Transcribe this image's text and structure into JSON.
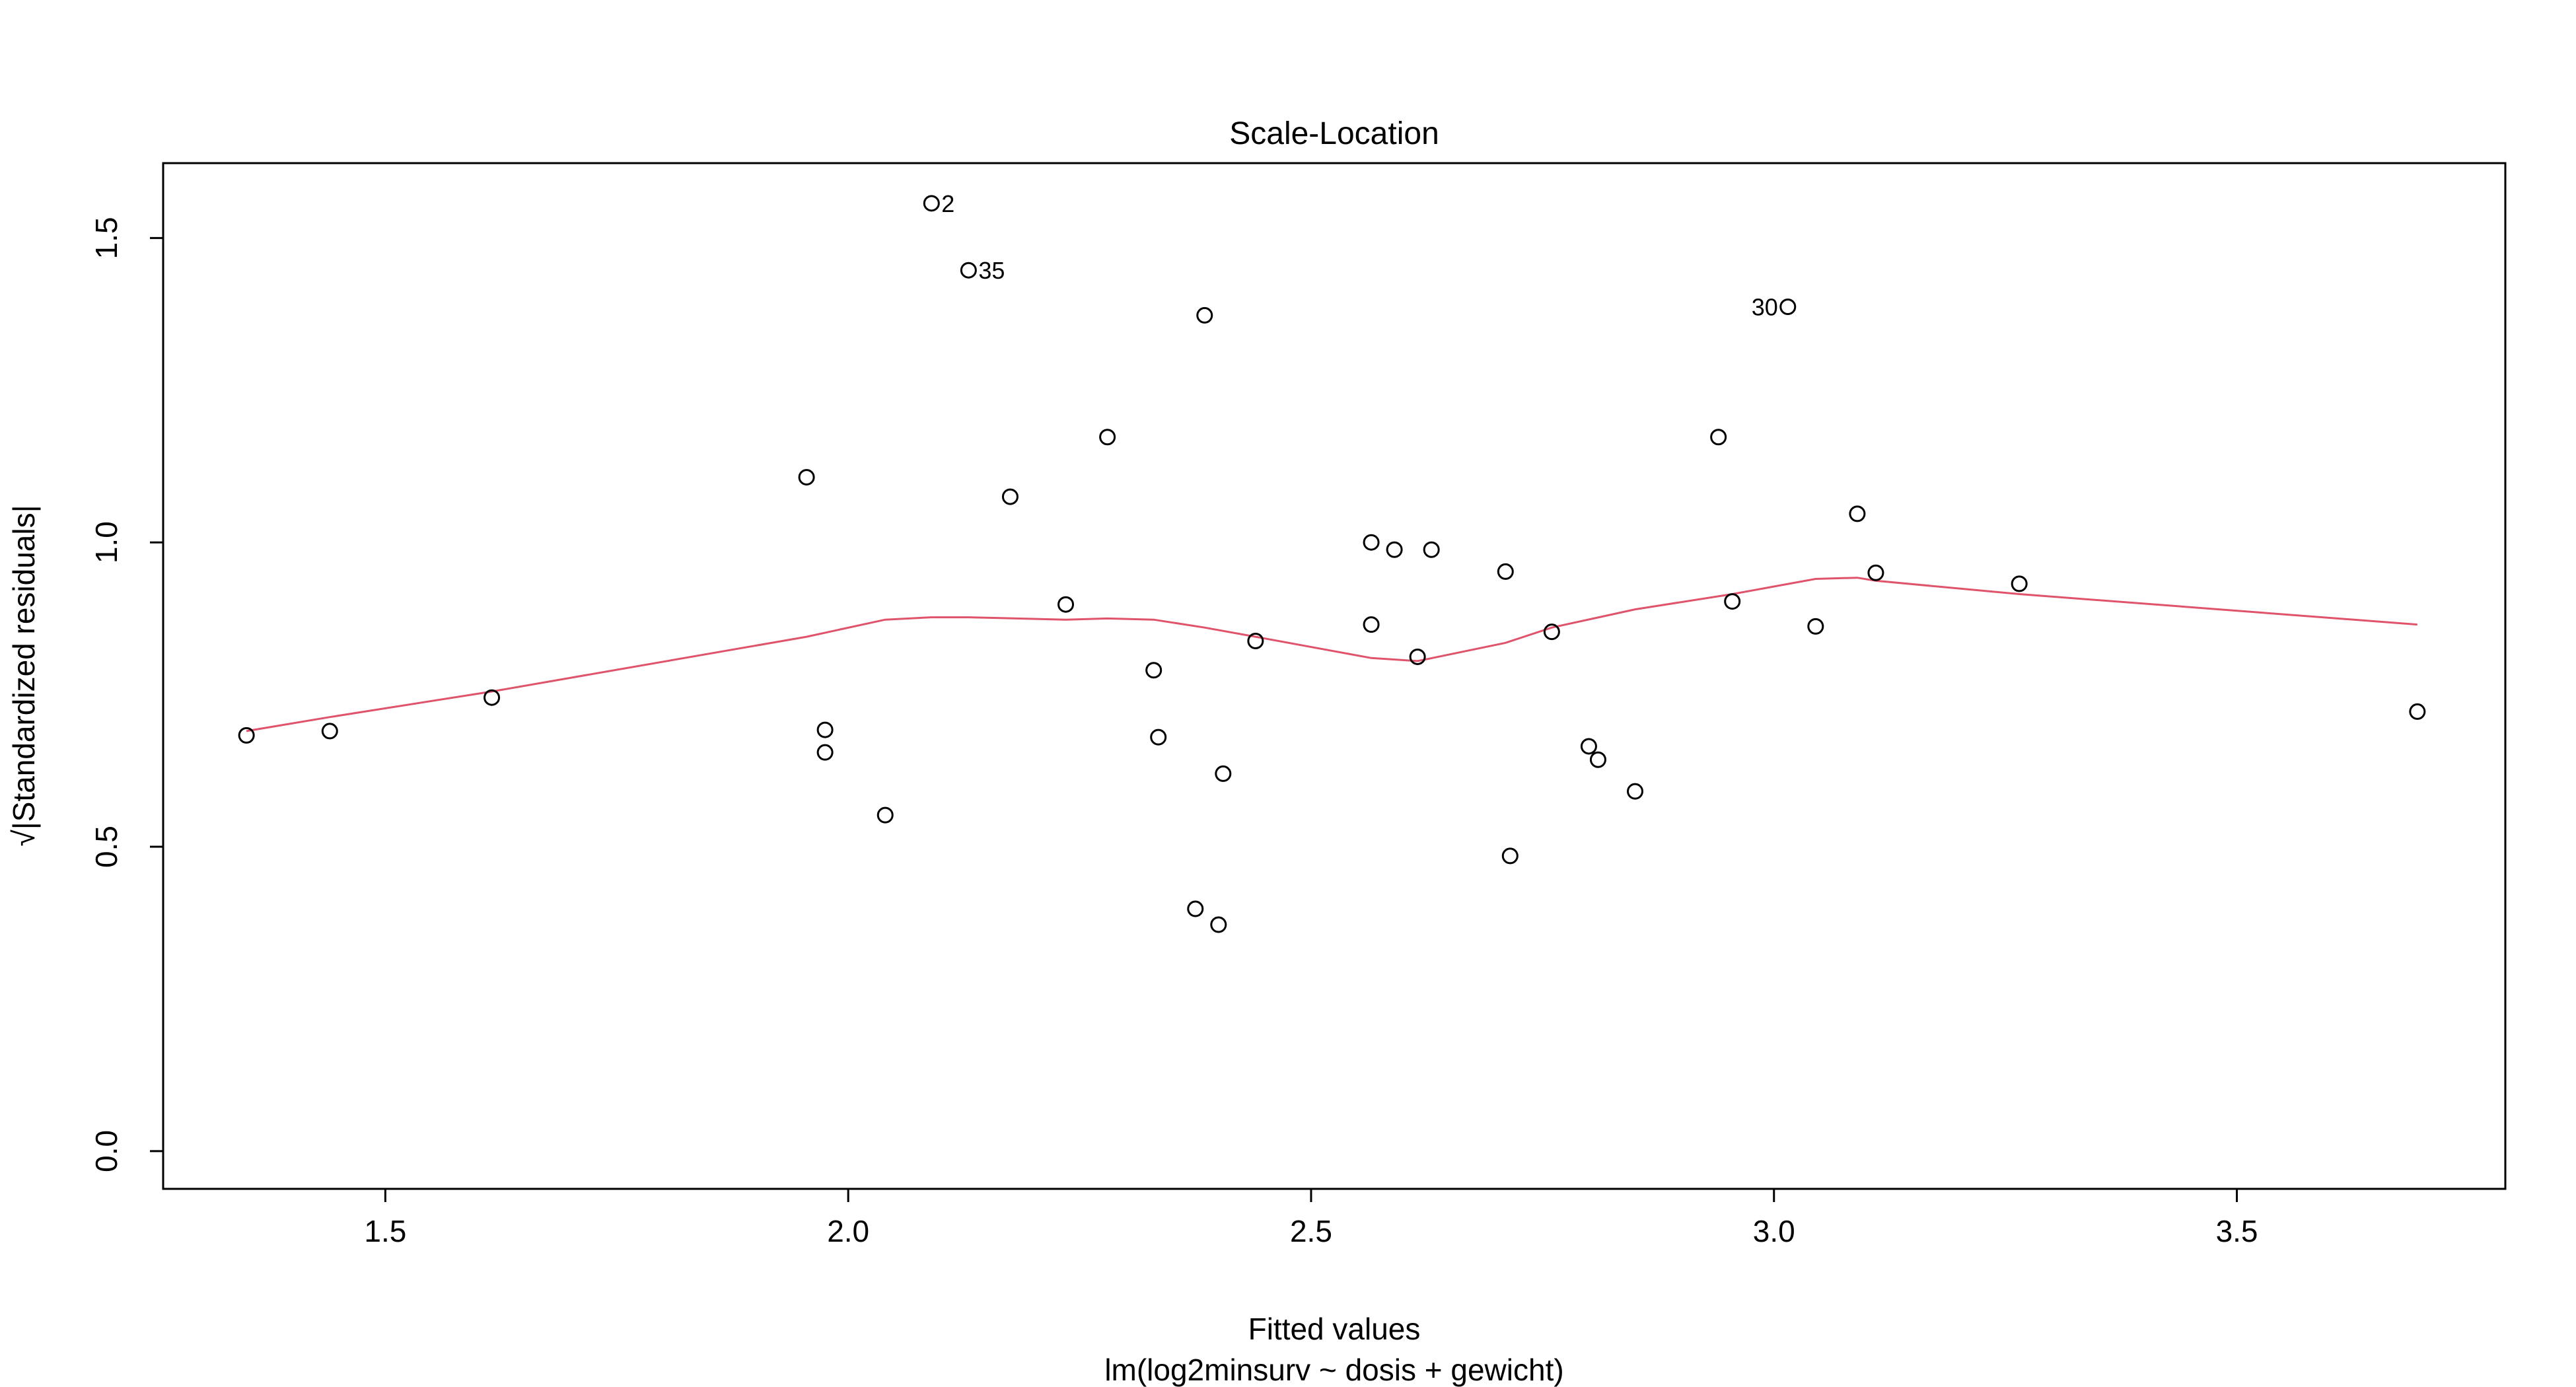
{
  "chart_data": {
    "type": "scatter",
    "title": "Scale-Location",
    "xlabel": "Fitted values",
    "subtitle": "lm(log2minsurv ~ dosis + gewicht)",
    "ylabel": "√|Standardized residuals|",
    "xlim": [
      1.26,
      3.79
    ],
    "ylim": [
      -0.062,
      1.623
    ],
    "x_ticks": [
      1.5,
      2.0,
      2.5,
      3.0,
      3.5
    ],
    "x_tick_labels": [
      "1.5",
      "2.0",
      "2.5",
      "3.0",
      "3.5"
    ],
    "y_ticks": [
      0.0,
      0.5,
      1.0,
      1.5
    ],
    "y_tick_labels": [
      "0.0",
      "0.5",
      "1.0",
      "1.5"
    ],
    "grid": false,
    "colors": {
      "points": "#000000",
      "smooth": "#DF536B",
      "frame": "#000000"
    },
    "points": [
      {
        "x": 1.35,
        "y": 0.683
      },
      {
        "x": 1.44,
        "y": 0.69
      },
      {
        "x": 1.615,
        "y": 0.745
      },
      {
        "x": 1.955,
        "y": 1.107
      },
      {
        "x": 1.975,
        "y": 0.692
      },
      {
        "x": 1.975,
        "y": 0.655
      },
      {
        "x": 2.04,
        "y": 0.552
      },
      {
        "x": 2.09,
        "y": 1.557,
        "label": "2",
        "label_side": "right"
      },
      {
        "x": 2.13,
        "y": 1.447,
        "label": "35",
        "label_side": "right"
      },
      {
        "x": 2.175,
        "y": 1.075
      },
      {
        "x": 2.235,
        "y": 0.898
      },
      {
        "x": 2.28,
        "y": 1.173
      },
      {
        "x": 2.33,
        "y": 0.79
      },
      {
        "x": 2.335,
        "y": 0.68
      },
      {
        "x": 2.375,
        "y": 0.398
      },
      {
        "x": 2.385,
        "y": 1.373
      },
      {
        "x": 2.4,
        "y": 0.372
      },
      {
        "x": 2.405,
        "y": 0.62
      },
      {
        "x": 2.44,
        "y": 0.838
      },
      {
        "x": 2.565,
        "y": 1.0
      },
      {
        "x": 2.565,
        "y": 0.865
      },
      {
        "x": 2.59,
        "y": 0.988
      },
      {
        "x": 2.615,
        "y": 0.812
      },
      {
        "x": 2.63,
        "y": 0.988
      },
      {
        "x": 2.71,
        "y": 0.952
      },
      {
        "x": 2.715,
        "y": 0.485
      },
      {
        "x": 2.76,
        "y": 0.853
      },
      {
        "x": 2.8,
        "y": 0.665
      },
      {
        "x": 2.81,
        "y": 0.643
      },
      {
        "x": 2.85,
        "y": 0.591
      },
      {
        "x": 2.94,
        "y": 1.173
      },
      {
        "x": 2.955,
        "y": 0.903
      },
      {
        "x": 3.015,
        "y": 1.387,
        "label": "30",
        "label_side": "left"
      },
      {
        "x": 3.045,
        "y": 0.862
      },
      {
        "x": 3.09,
        "y": 1.047
      },
      {
        "x": 3.11,
        "y": 0.95
      },
      {
        "x": 3.265,
        "y": 0.932
      },
      {
        "x": 3.695,
        "y": 0.722
      }
    ],
    "smooth_line": {
      "x": [
        1.35,
        1.44,
        1.615,
        1.955,
        2.04,
        2.09,
        2.13,
        2.235,
        2.28,
        2.33,
        2.385,
        2.44,
        2.565,
        2.615,
        2.71,
        2.76,
        2.85,
        2.955,
        3.045,
        3.09,
        3.11,
        3.265,
        3.695
      ],
      "y": [
        0.69,
        0.713,
        0.755,
        0.845,
        0.873,
        0.877,
        0.877,
        0.873,
        0.875,
        0.873,
        0.86,
        0.845,
        0.81,
        0.805,
        0.835,
        0.86,
        0.89,
        0.915,
        0.94,
        0.942,
        0.937,
        0.915,
        0.865
      ]
    }
  }
}
